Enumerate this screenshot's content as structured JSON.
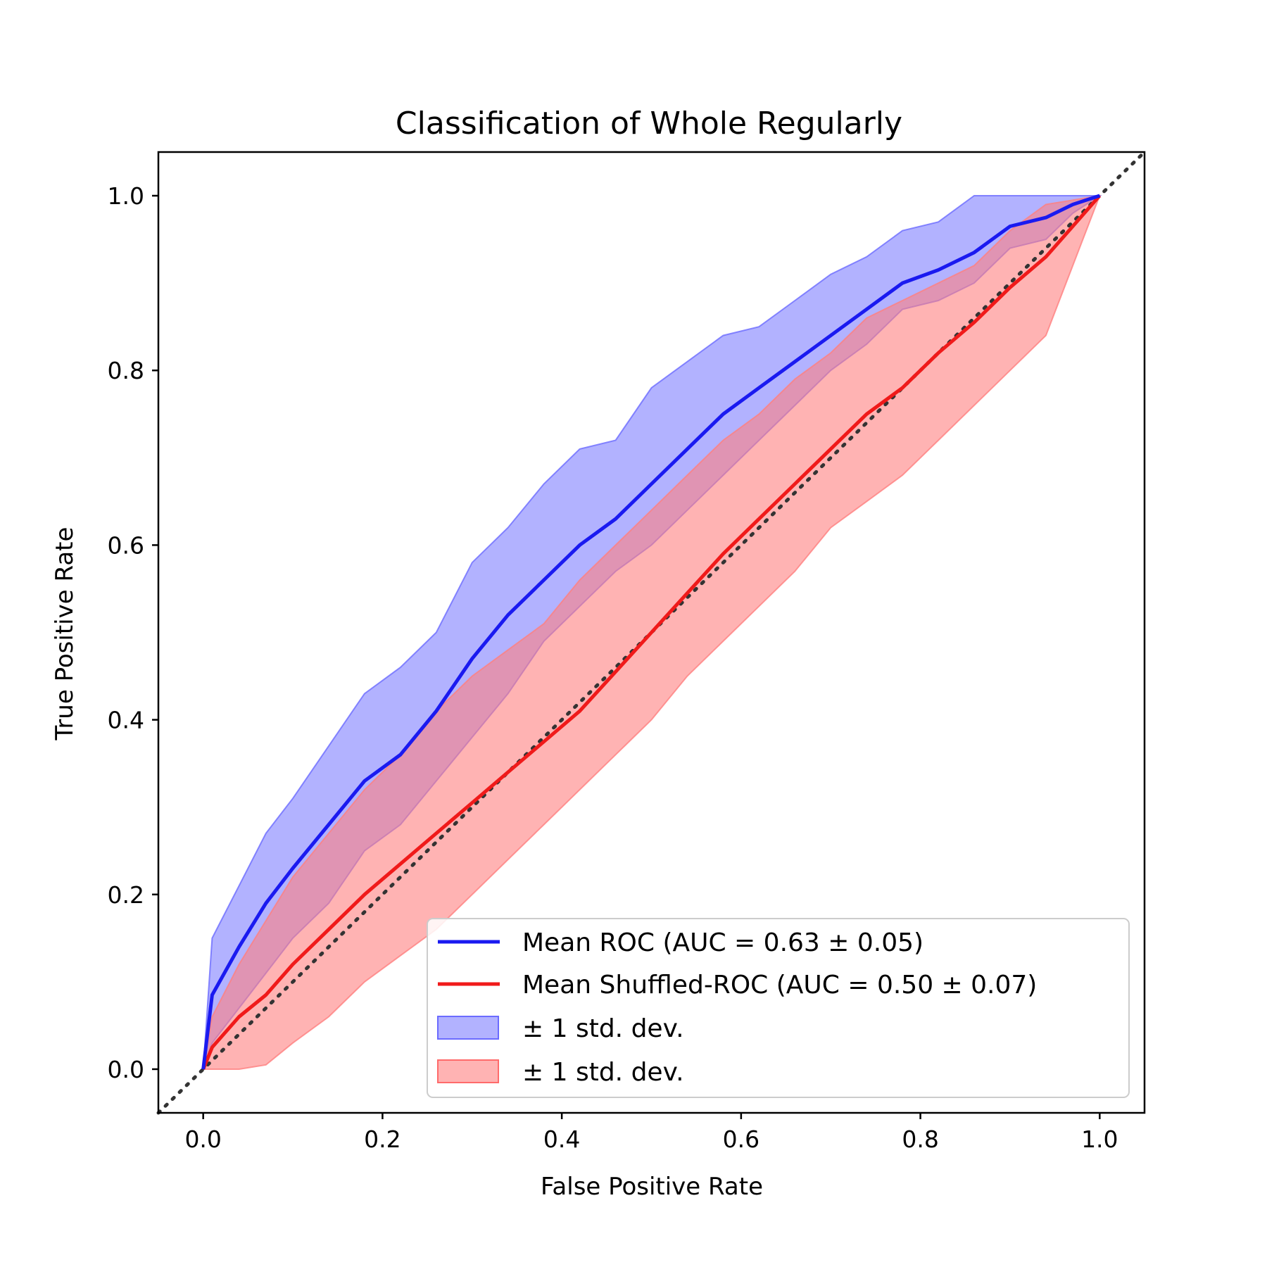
{
  "chart_data": {
    "type": "line",
    "title": "Classification of Whole Regularly",
    "xlabel": "False Positive Rate",
    "ylabel": "True Positive Rate",
    "xlim": [
      -0.05,
      1.05
    ],
    "ylim": [
      -0.05,
      1.05
    ],
    "xticks": [
      "0.0",
      "0.2",
      "0.4",
      "0.6",
      "0.8",
      "1.0"
    ],
    "yticks": [
      "0.0",
      "0.2",
      "0.4",
      "0.6",
      "0.8",
      "1.0"
    ],
    "grid": false,
    "legend_position": "lower-right",
    "x": [
      0,
      0.01,
      0.04,
      0.07,
      0.1,
      0.14,
      0.18,
      0.22,
      0.26,
      0.3,
      0.34,
      0.38,
      0.42,
      0.46,
      0.5,
      0.54,
      0.58,
      0.62,
      0.66,
      0.7,
      0.74,
      0.78,
      0.82,
      0.86,
      0.9,
      0.94,
      0.97,
      1.0
    ],
    "series": [
      {
        "name": "Mean ROC (AUC = 0.63 ± 0.05)",
        "kind": "line",
        "color": "#1a1af0",
        "values": [
          0,
          0.085,
          0.14,
          0.19,
          0.23,
          0.28,
          0.33,
          0.36,
          0.41,
          0.47,
          0.52,
          0.56,
          0.6,
          0.63,
          0.67,
          0.71,
          0.75,
          0.78,
          0.81,
          0.84,
          0.87,
          0.9,
          0.915,
          0.935,
          0.965,
          0.975,
          0.99,
          1.0
        ]
      },
      {
        "name": "Mean Shuffled-ROC (AUC = 0.50 ± 0.07)",
        "kind": "line",
        "color": "#f01a1a",
        "values": [
          0,
          0.025,
          0.06,
          0.085,
          0.12,
          0.16,
          0.2,
          0.235,
          0.27,
          0.305,
          0.34,
          0.375,
          0.41,
          0.455,
          0.5,
          0.545,
          0.59,
          0.63,
          0.67,
          0.71,
          0.75,
          0.78,
          0.82,
          0.855,
          0.895,
          0.93,
          0.965,
          1.0
        ]
      },
      {
        "name": "± 1 std. dev.",
        "kind": "band",
        "color": "#6b6bff",
        "lower": [
          0,
          0.03,
          0.07,
          0.11,
          0.15,
          0.19,
          0.25,
          0.28,
          0.33,
          0.38,
          0.43,
          0.49,
          0.53,
          0.57,
          0.6,
          0.64,
          0.68,
          0.72,
          0.76,
          0.8,
          0.83,
          0.87,
          0.88,
          0.9,
          0.94,
          0.95,
          0.98,
          1.0
        ],
        "upper": [
          0,
          0.15,
          0.21,
          0.27,
          0.31,
          0.37,
          0.43,
          0.46,
          0.5,
          0.58,
          0.62,
          0.67,
          0.71,
          0.72,
          0.78,
          0.81,
          0.84,
          0.85,
          0.88,
          0.91,
          0.93,
          0.96,
          0.97,
          1.0,
          1.0,
          1.0,
          1.0,
          1.0
        ]
      },
      {
        "name": "± 1 std. dev.",
        "kind": "band",
        "color": "#ff8080",
        "lower": [
          0,
          0,
          0,
          0.005,
          0.03,
          0.06,
          0.1,
          0.13,
          0.16,
          0.2,
          0.24,
          0.28,
          0.32,
          0.36,
          0.4,
          0.45,
          0.49,
          0.53,
          0.57,
          0.62,
          0.65,
          0.68,
          0.72,
          0.76,
          0.8,
          0.84,
          0.92,
          1.0
        ],
        "upper": [
          0,
          0.06,
          0.12,
          0.17,
          0.22,
          0.27,
          0.32,
          0.36,
          0.41,
          0.45,
          0.48,
          0.51,
          0.56,
          0.6,
          0.64,
          0.68,
          0.72,
          0.75,
          0.79,
          0.82,
          0.86,
          0.88,
          0.9,
          0.92,
          0.96,
          0.99,
          0.995,
          1.0
        ]
      }
    ],
    "reference_line": {
      "x": [
        -0.05,
        1.05
      ],
      "y": [
        -0.05,
        1.05
      ],
      "style": "dotted",
      "color": "#333333"
    }
  }
}
